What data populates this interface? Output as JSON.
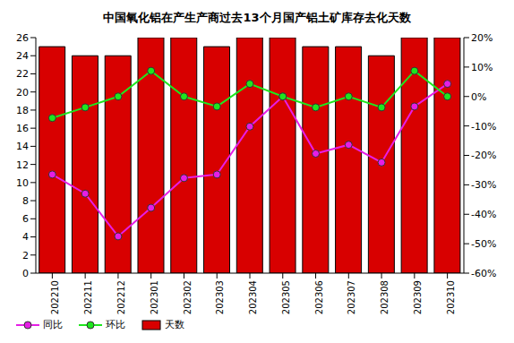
{
  "chart_data": {
    "type": "bar",
    "title": "中国氧化铝在产生产商过去13个月国产铝土矿库存去化天数",
    "categories": [
      "202210",
      "202211",
      "202212",
      "202301",
      "202302",
      "202303",
      "202304",
      "202305",
      "202306",
      "202307",
      "202308",
      "202309",
      "202310"
    ],
    "series": [
      {
        "name": "同比",
        "type": "line",
        "axis": "y2",
        "color": "#e61ee6",
        "marker": "circle",
        "line_style": "solid",
        "values": [
          -26.5,
          -33,
          -47.5,
          -37.8,
          -27.7,
          -26.5,
          -10.2,
          0,
          -19.4,
          -16.4,
          -22.4,
          -3.4,
          4.3
        ]
      },
      {
        "name": "环比",
        "type": "line",
        "axis": "y2",
        "color": "#1ee61e",
        "marker": "circle",
        "line_style": "solid",
        "values": [
          -7.3,
          -3.7,
          0,
          8.7,
          0,
          -3.4,
          4.3,
          0,
          -3.7,
          0,
          -3.7,
          8.7,
          0
        ]
      },
      {
        "name": "天数",
        "type": "bar",
        "color": "#d80000",
        "values": [
          25,
          24,
          24,
          26,
          26,
          25,
          26,
          26,
          25,
          25,
          24,
          26,
          26
        ]
      }
    ],
    "ylim": [
      0,
      26
    ],
    "yticks": [
      0,
      2,
      4,
      6,
      8,
      10,
      12,
      14,
      16,
      18,
      20,
      22,
      24,
      26
    ],
    "y2lim": [
      -60,
      20
    ],
    "y2ticks": [
      {
        "value": -60,
        "label": "-60%"
      },
      {
        "value": -50,
        "label": "-50%"
      },
      {
        "value": -40,
        "label": "-40%"
      },
      {
        "value": -30,
        "label": "-30%"
      },
      {
        "value": -20,
        "label": "-20%"
      },
      {
        "value": -10,
        "label": "-10%"
      },
      {
        "value": 0,
        "label": "0%"
      },
      {
        "value": 10,
        "label": "10%"
      },
      {
        "value": 20,
        "label": "20%"
      }
    ],
    "grid": false,
    "legend": "bottom-left"
  }
}
